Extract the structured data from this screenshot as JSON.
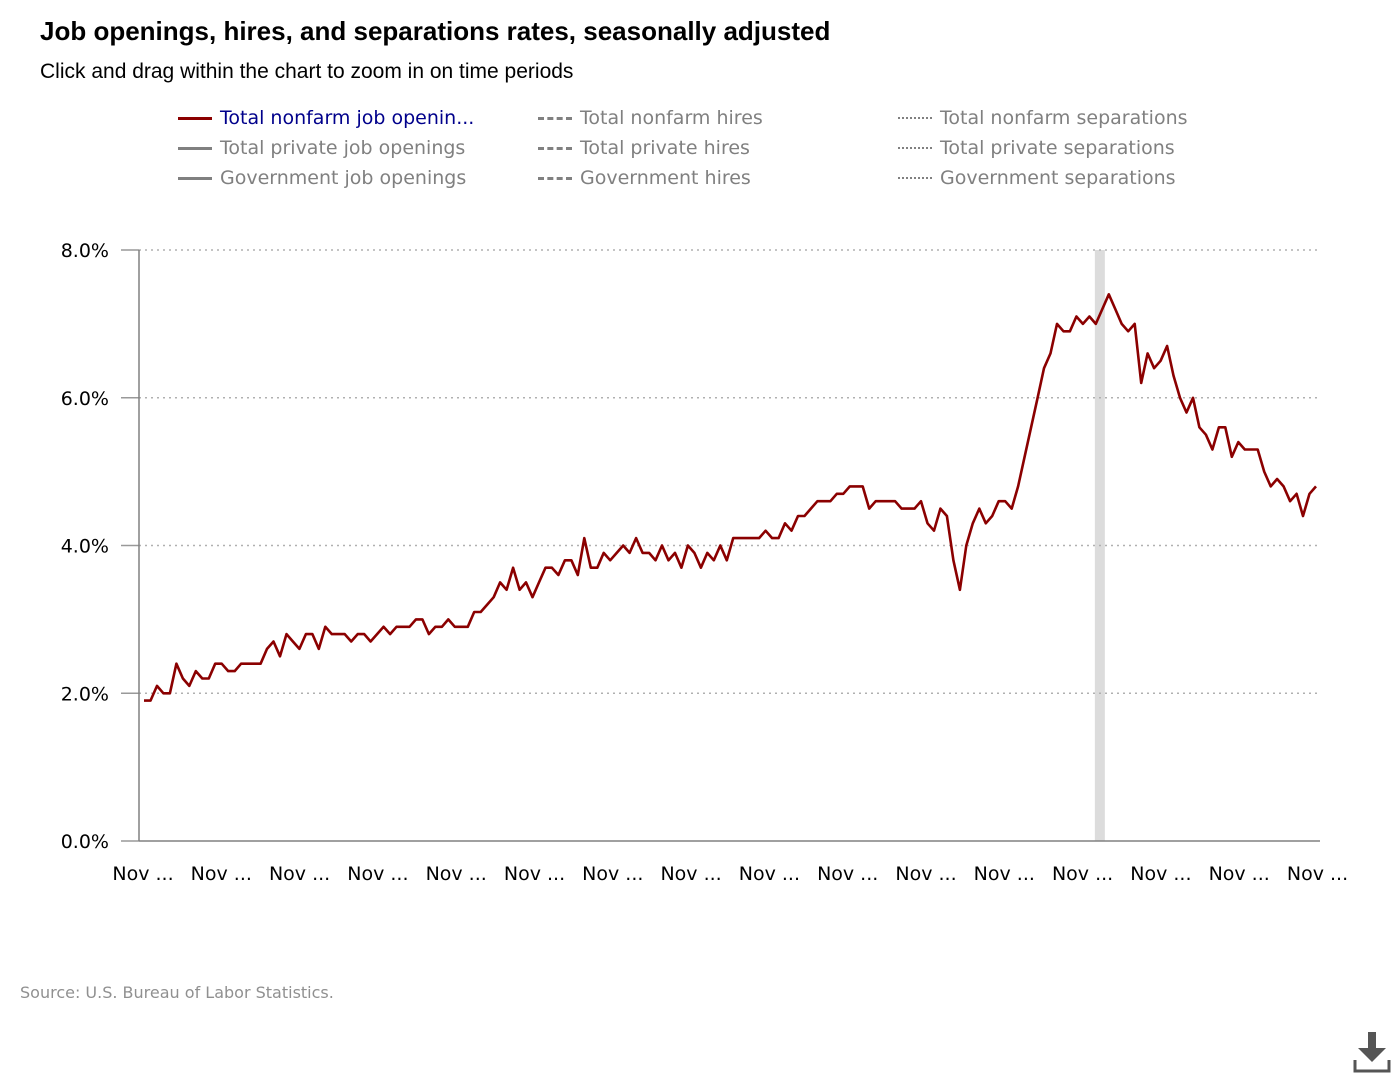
{
  "header": {
    "title": "Job openings, hires, and separations rates, seasonally adjusted",
    "subtitle": "Click and drag within the chart to zoom in on time periods"
  },
  "colors": {
    "active": "#8b0000",
    "inactive": "#808080",
    "active_text": "#00008b",
    "inactive_text": "#808080",
    "recession": "#dcdcdc",
    "grid": "#b0b0b0"
  },
  "legend": [
    {
      "label": "Total nonfarm job openin...",
      "style": "solid",
      "active": true
    },
    {
      "label": "Total nonfarm hires",
      "style": "dash",
      "active": false
    },
    {
      "label": "Total nonfarm separations",
      "style": "dot",
      "active": false
    },
    {
      "label": "Total private job openings",
      "style": "solid",
      "active": false
    },
    {
      "label": "Total private hires",
      "style": "dash",
      "active": false
    },
    {
      "label": "Total private separations",
      "style": "dot",
      "active": false
    },
    {
      "label": "Government job openings",
      "style": "solid",
      "active": false
    },
    {
      "label": "Government hires",
      "style": "dash",
      "active": false
    },
    {
      "label": "Government separations",
      "style": "dot",
      "active": false
    }
  ],
  "chart_data": {
    "type": "line",
    "title": "Job openings, hires, and separations rates, seasonally adjusted",
    "xlabel": "",
    "ylabel": "",
    "ylim": [
      0,
      8
    ],
    "yticks": [
      "0.0%",
      "2.0%",
      "4.0%",
      "6.0%",
      "8.0%"
    ],
    "ytick_values": [
      0,
      2,
      4,
      6,
      8
    ],
    "xticks": [
      "Nov ...",
      "Nov ...",
      "Nov ...",
      "Nov ...",
      "Nov ...",
      "Nov ...",
      "Nov ...",
      "Nov ...",
      "Nov ...",
      "Nov ...",
      "Nov ...",
      "Nov ...",
      "Nov ...",
      "Nov ...",
      "Nov ...",
      "Nov ..."
    ],
    "grid": true,
    "recession_band": {
      "start_index": 147,
      "end_index": 148
    },
    "series": [
      {
        "name": "Total nonfarm job openings",
        "values": [
          1.9,
          1.9,
          2.1,
          2.0,
          2.0,
          2.4,
          2.2,
          2.1,
          2.3,
          2.2,
          2.2,
          2.4,
          2.4,
          2.3,
          2.3,
          2.4,
          2.4,
          2.4,
          2.4,
          2.6,
          2.7,
          2.5,
          2.8,
          2.7,
          2.6,
          2.8,
          2.8,
          2.6,
          2.9,
          2.8,
          2.8,
          2.8,
          2.7,
          2.8,
          2.8,
          2.7,
          2.8,
          2.9,
          2.8,
          2.9,
          2.9,
          2.9,
          3.0,
          3.0,
          2.8,
          2.9,
          2.9,
          3.0,
          2.9,
          2.9,
          2.9,
          3.1,
          3.1,
          3.2,
          3.3,
          3.5,
          3.4,
          3.7,
          3.4,
          3.5,
          3.3,
          3.5,
          3.7,
          3.7,
          3.6,
          3.8,
          3.8,
          3.6,
          4.1,
          3.7,
          3.7,
          3.9,
          3.8,
          3.9,
          4.0,
          3.9,
          4.1,
          3.9,
          3.9,
          3.8,
          4.0,
          3.8,
          3.9,
          3.7,
          4.0,
          3.9,
          3.7,
          3.9,
          3.8,
          4.0,
          3.8,
          4.1,
          4.1,
          4.1,
          4.1,
          4.1,
          4.2,
          4.1,
          4.1,
          4.3,
          4.2,
          4.4,
          4.4,
          4.5,
          4.6,
          4.6,
          4.6,
          4.7,
          4.7,
          4.8,
          4.8,
          4.8,
          4.5,
          4.6,
          4.6,
          4.6,
          4.6,
          4.5,
          4.5,
          4.5,
          4.6,
          4.3,
          4.2,
          4.5,
          4.4,
          3.8,
          3.4,
          4.0,
          4.3,
          4.5,
          4.3,
          4.4,
          4.6,
          4.6,
          4.5,
          4.8,
          5.2,
          5.6,
          6.0,
          6.4,
          6.6,
          7.0,
          6.9,
          6.9,
          7.1,
          7.0,
          7.1,
          7.0,
          7.2,
          7.4,
          7.2,
          7.0,
          6.9,
          7.0,
          6.2,
          6.6,
          6.4,
          6.5,
          6.7,
          6.3,
          6.0,
          5.8,
          6.0,
          5.6,
          5.5,
          5.3,
          5.6,
          5.6,
          5.2,
          5.4,
          5.3,
          5.3,
          5.3,
          5.0,
          4.8,
          4.9,
          4.8,
          4.6,
          4.7,
          4.4,
          4.7,
          4.8
        ]
      }
    ]
  },
  "source": "Source: U.S. Bureau of Labor Statistics.",
  "download_icon": "download-icon"
}
